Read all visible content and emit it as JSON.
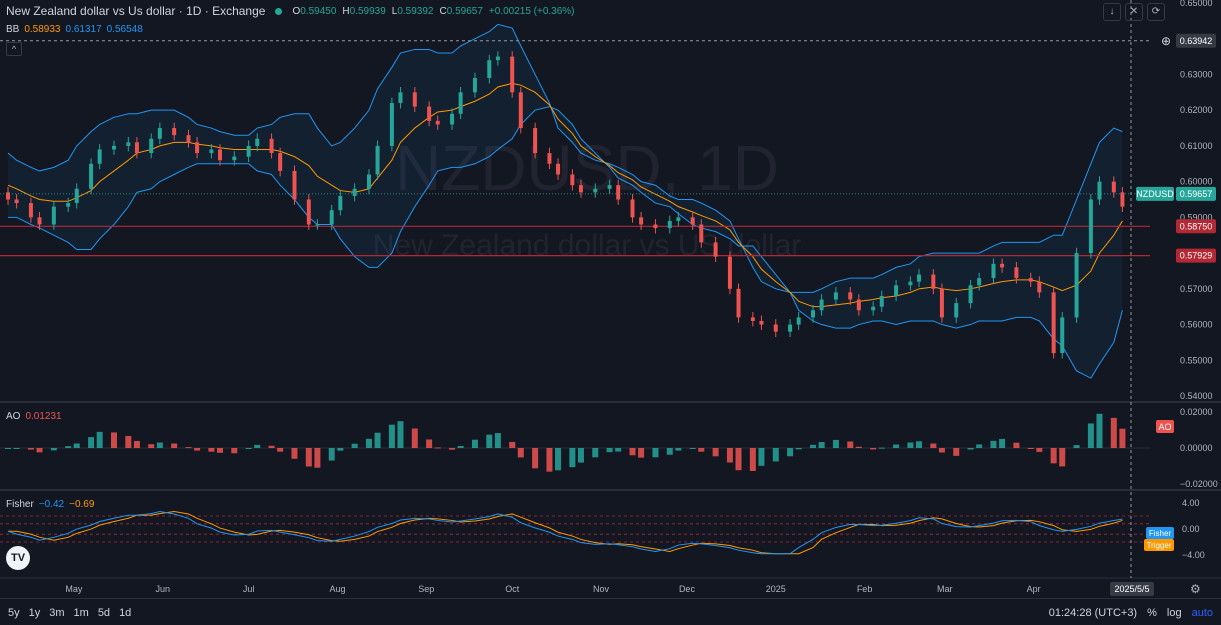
{
  "header": {
    "title": "New Zealand dollar vs Us dollar · 1D · Exchange",
    "open_label": "O",
    "open": "0.59450",
    "high_label": "H",
    "high": "0.59939",
    "low_label": "L",
    "low": "0.59392",
    "close_label": "C",
    "close": "0.59657",
    "change": "+0.00215 (+0.36%)"
  },
  "bb": {
    "label": "BB",
    "basis": "0.58933",
    "upper": "0.61317",
    "lower": "0.56548"
  },
  "ao": {
    "label": "AO",
    "value": "0.01231",
    "tag": "AO"
  },
  "fisher": {
    "label": "Fisher",
    "value": "−0.42",
    "trigger": "−0.69",
    "tag_fisher": "Fisher",
    "tag_trigger": "Trigger"
  },
  "watermark": {
    "symbol": "NZDUSD, 1D",
    "name": "New Zealand dollar vs US dollar"
  },
  "price_tags": {
    "symbol": "NZDUSD",
    "last": "0.59657",
    "crosshair": "0.63942",
    "line1": "0.58750",
    "line2": "0.57929"
  },
  "price_axis_ticks": [
    "0.65000",
    "0.64000",
    "0.63000",
    "0.62000",
    "0.61000",
    "0.60000",
    "0.59000",
    "0.58000",
    "0.57000",
    "0.56000",
    "0.55000",
    "0.54000"
  ],
  "ao_axis_ticks": [
    "0.02000",
    "0.00000",
    "−0.02000"
  ],
  "fisher_axis_ticks": [
    "4.00",
    "0.00",
    "−4.00"
  ],
  "time_labels": [
    "May",
    "Jun",
    "Jul",
    "Aug",
    "Sep",
    "Oct",
    "Nov",
    "Dec",
    "2025",
    "Feb",
    "Mar",
    "Apr"
  ],
  "crosshair_date": "2025/5/5",
  "bottom_bar": {
    "ranges": [
      "5y",
      "1y",
      "3m",
      "1m",
      "5d",
      "1d"
    ],
    "clock": "01:24:28 (UTC+3)",
    "percent": "%",
    "log": "log",
    "auto": "auto"
  },
  "colors": {
    "up": "#26a69a",
    "down": "#ef5350",
    "bb_band": "#2196f3",
    "bb_basis": "#ff9800",
    "fisher": "#2196f3",
    "trigger": "#ff9800",
    "hline": "#b22833"
  },
  "chart_data": {
    "type": "candlestick",
    "y_range": [
      0.54,
      0.65
    ],
    "ao_range": [
      -0.02,
      0.02
    ],
    "fisher_range": [
      -4,
      4
    ],
    "x": [
      "2024-04-08",
      "2024-04-11",
      "2024-04-16",
      "2024-04-19",
      "2024-04-24",
      "2024-04-29",
      "2024-05-02",
      "2024-05-07",
      "2024-05-10",
      "2024-05-15",
      "2024-05-20",
      "2024-05-23",
      "2024-05-28",
      "2024-05-31",
      "2024-06-05",
      "2024-06-10",
      "2024-06-13",
      "2024-06-18",
      "2024-06-21",
      "2024-06-26",
      "2024-07-01",
      "2024-07-04",
      "2024-07-09",
      "2024-07-12",
      "2024-07-17",
      "2024-07-22",
      "2024-07-25",
      "2024-07-30",
      "2024-08-02",
      "2024-08-07",
      "2024-08-12",
      "2024-08-15",
      "2024-08-20",
      "2024-08-23",
      "2024-08-28",
      "2024-09-02",
      "2024-09-05",
      "2024-09-10",
      "2024-09-13",
      "2024-09-18",
      "2024-09-23",
      "2024-09-26",
      "2024-10-01",
      "2024-10-04",
      "2024-10-09",
      "2024-10-14",
      "2024-10-17",
      "2024-10-22",
      "2024-10-25",
      "2024-10-30",
      "2024-11-04",
      "2024-11-07",
      "2024-11-12",
      "2024-11-15",
      "2024-11-20",
      "2024-11-25",
      "2024-11-28",
      "2024-12-03",
      "2024-12-06",
      "2024-12-11",
      "2024-12-16",
      "2024-12-19",
      "2024-12-24",
      "2024-12-27",
      "2025-01-01",
      "2025-01-06",
      "2025-01-09",
      "2025-01-14",
      "2025-01-17",
      "2025-01-22",
      "2025-01-27",
      "2025-01-30",
      "2025-02-04",
      "2025-02-07",
      "2025-02-12",
      "2025-02-17",
      "2025-02-20",
      "2025-02-25",
      "2025-02-28",
      "2025-03-05",
      "2025-03-10",
      "2025-03-13",
      "2025-03-18",
      "2025-03-21",
      "2025-03-26",
      "2025-03-31",
      "2025-04-03",
      "2025-04-08",
      "2025-04-11",
      "2025-04-16",
      "2025-04-21",
      "2025-04-24",
      "2025-04-29",
      "2025-05-02"
    ],
    "close": [
      0.595,
      0.594,
      0.59,
      0.588,
      0.593,
      0.594,
      0.598,
      0.605,
      0.609,
      0.61,
      0.611,
      0.608,
      0.612,
      0.615,
      0.613,
      0.611,
      0.608,
      0.609,
      0.606,
      0.607,
      0.61,
      0.612,
      0.608,
      0.603,
      0.595,
      0.588,
      0.588,
      0.592,
      0.596,
      0.598,
      0.602,
      0.61,
      0.622,
      0.625,
      0.621,
      0.617,
      0.616,
      0.619,
      0.625,
      0.629,
      0.634,
      0.635,
      0.625,
      0.615,
      0.608,
      0.605,
      0.602,
      0.599,
      0.597,
      0.598,
      0.599,
      0.595,
      0.59,
      0.588,
      0.587,
      0.589,
      0.59,
      0.588,
      0.583,
      0.579,
      0.57,
      0.562,
      0.561,
      0.56,
      0.558,
      0.56,
      0.562,
      0.564,
      0.567,
      0.569,
      0.567,
      0.564,
      0.565,
      0.568,
      0.571,
      0.572,
      0.574,
      0.57,
      0.562,
      0.566,
      0.571,
      0.573,
      0.577,
      0.576,
      0.573,
      0.572,
      0.569,
      0.552,
      0.562,
      0.58,
      0.595,
      0.6,
      0.597,
      0.593
    ],
    "bb_upper": [
      0.608,
      0.606,
      0.604,
      0.603,
      0.604,
      0.606,
      0.61,
      0.614,
      0.616,
      0.618,
      0.619,
      0.619,
      0.62,
      0.62,
      0.62,
      0.618,
      0.616,
      0.615,
      0.614,
      0.613,
      0.613,
      0.615,
      0.616,
      0.618,
      0.619,
      0.619,
      0.615,
      0.61,
      0.611,
      0.615,
      0.62,
      0.626,
      0.632,
      0.636,
      0.637,
      0.637,
      0.636,
      0.636,
      0.638,
      0.64,
      0.642,
      0.644,
      0.643,
      0.638,
      0.63,
      0.622,
      0.615,
      0.611,
      0.608,
      0.606,
      0.605,
      0.604,
      0.602,
      0.6,
      0.599,
      0.596,
      0.595,
      0.595,
      0.594,
      0.592,
      0.589,
      0.584,
      0.576,
      0.572,
      0.57,
      0.569,
      0.569,
      0.569,
      0.57,
      0.572,
      0.573,
      0.573,
      0.573,
      0.574,
      0.576,
      0.577,
      0.579,
      0.58,
      0.58,
      0.58,
      0.58,
      0.58,
      0.582,
      0.583,
      0.583,
      0.583,
      0.583,
      0.585,
      0.585,
      0.595,
      0.605,
      0.611,
      0.615,
      0.614
    ],
    "bb_basis": [
      0.599,
      0.598,
      0.596,
      0.595,
      0.5945,
      0.5945,
      0.5955,
      0.5975,
      0.6,
      0.603,
      0.606,
      0.608,
      0.609,
      0.61,
      0.611,
      0.611,
      0.6105,
      0.61,
      0.6095,
      0.609,
      0.609,
      0.609,
      0.609,
      0.6085,
      0.607,
      0.6045,
      0.6015,
      0.599,
      0.5975,
      0.597,
      0.598,
      0.601,
      0.606,
      0.611,
      0.615,
      0.618,
      0.6195,
      0.62,
      0.621,
      0.6225,
      0.6245,
      0.6265,
      0.6275,
      0.627,
      0.625,
      0.6215,
      0.6175,
      0.6135,
      0.61,
      0.607,
      0.6045,
      0.6025,
      0.6005,
      0.5985,
      0.5965,
      0.5945,
      0.593,
      0.5915,
      0.5905,
      0.589,
      0.5865,
      0.583,
      0.579,
      0.5755,
      0.572,
      0.569,
      0.5665,
      0.565,
      0.565,
      0.5655,
      0.566,
      0.5665,
      0.567,
      0.5675,
      0.568,
      0.569,
      0.57,
      0.5705,
      0.57,
      0.5695,
      0.57,
      0.5705,
      0.5715,
      0.572,
      0.5725,
      0.5725,
      0.572,
      0.5705,
      0.5695,
      0.571,
      0.575,
      0.58,
      0.585,
      0.589
    ],
    "bb_lower": [
      0.59,
      0.59,
      0.588,
      0.587,
      0.585,
      0.583,
      0.581,
      0.581,
      0.584,
      0.588,
      0.593,
      0.597,
      0.598,
      0.6,
      0.602,
      0.604,
      0.605,
      0.605,
      0.605,
      0.605,
      0.605,
      0.603,
      0.602,
      0.599,
      0.595,
      0.59,
      0.588,
      0.588,
      0.584,
      0.579,
      0.576,
      0.576,
      0.58,
      0.586,
      0.593,
      0.599,
      0.603,
      0.604,
      0.604,
      0.605,
      0.607,
      0.609,
      0.612,
      0.616,
      0.62,
      0.621,
      0.62,
      0.616,
      0.612,
      0.608,
      0.604,
      0.601,
      0.599,
      0.597,
      0.594,
      0.593,
      0.591,
      0.588,
      0.587,
      0.586,
      0.584,
      0.582,
      0.582,
      0.579,
      0.574,
      0.569,
      0.564,
      0.561,
      0.56,
      0.559,
      0.559,
      0.56,
      0.561,
      0.561,
      0.56,
      0.561,
      0.561,
      0.561,
      0.56,
      0.559,
      0.56,
      0.561,
      0.561,
      0.561,
      0.562,
      0.562,
      0.561,
      0.556,
      0.554,
      0.547,
      0.545,
      0.549,
      0.555,
      0.564
    ]
  }
}
